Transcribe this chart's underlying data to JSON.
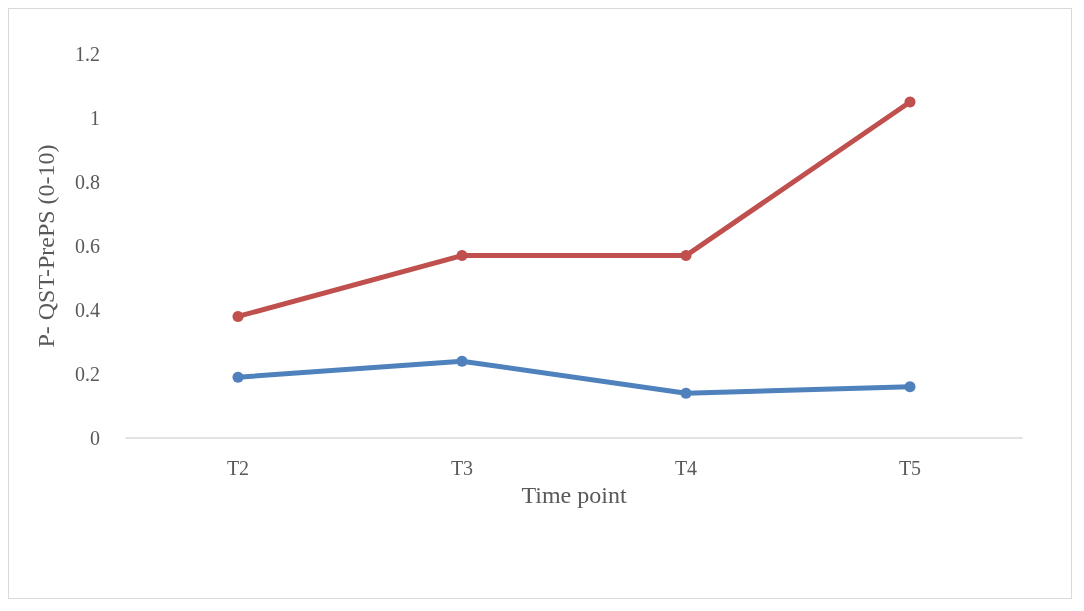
{
  "chart_data": {
    "type": "line",
    "xlabel": "Time point",
    "ylabel": "P- QST-PrePS (0-10)",
    "categories": [
      "T2",
      "T3",
      "T4",
      "T5"
    ],
    "series": [
      {
        "color": "#4f81bd",
        "values": [
          0.19,
          0.24,
          0.14,
          0.16
        ]
      },
      {
        "color": "#c0504d",
        "values": [
          0.38,
          0.57,
          0.57,
          1.05
        ]
      }
    ],
    "ylim": [
      0,
      1.2
    ],
    "yticks": [
      0,
      0.2,
      0.4,
      0.6,
      0.8,
      1,
      1.2
    ],
    "grid": false,
    "marker": "circle",
    "line_style": "solid"
  }
}
